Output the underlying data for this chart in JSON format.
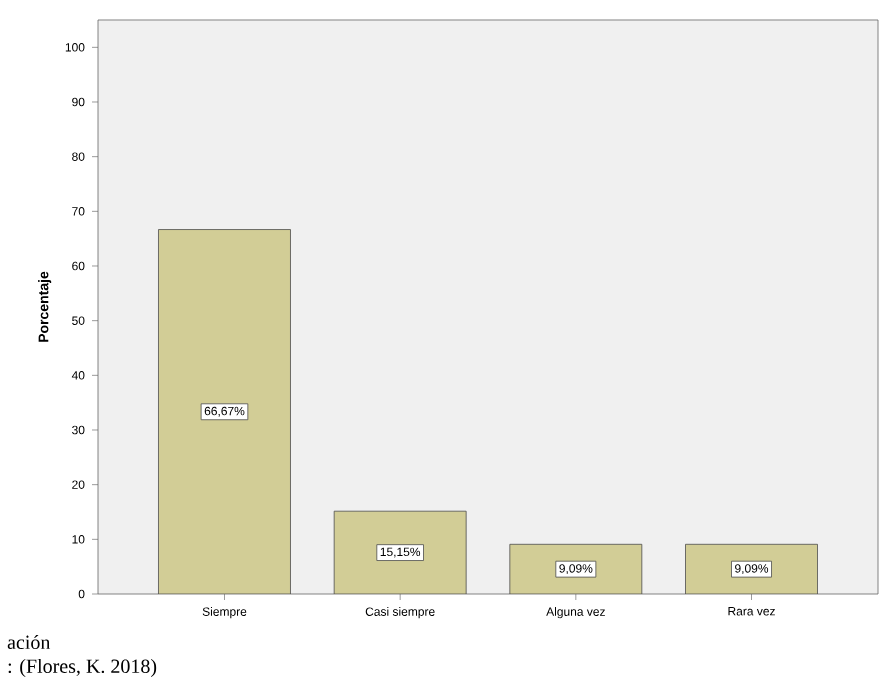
{
  "chart_data": {
    "type": "bar",
    "ylabel": "Porcentaje",
    "categories": [
      "Siempre",
      "Casi siempre",
      "Alguna vez",
      "Rara vez"
    ],
    "values": [
      66.67,
      15.15,
      9.09,
      9.09
    ],
    "value_labels": [
      "66,67%",
      "15,15%",
      "9,09%",
      "9,09%"
    ],
    "color": "#d2cd96",
    "ylim": [
      0,
      105
    ],
    "yticks": [
      0,
      10,
      20,
      30,
      40,
      50,
      60,
      70,
      80,
      90,
      100
    ],
    "grid": false,
    "annotations": [
      "ación",
      ": (Flores, K. 2018)"
    ]
  }
}
